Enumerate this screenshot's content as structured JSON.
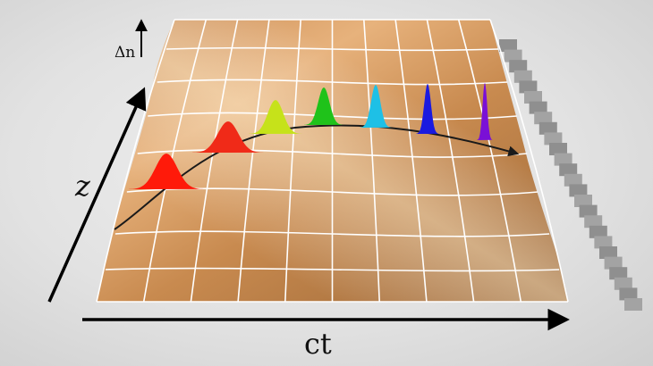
{
  "labels": {
    "delta_n": "Δn",
    "z_axis": "z",
    "ct_axis": "ct"
  },
  "colors": {
    "surface_light": "#e8b07a",
    "surface_mid": "#c9894f",
    "surface_dark": "#8a5a2f",
    "grid": "#ffffff",
    "trajectory": "#1a1a1a",
    "axis": "#000000",
    "block": "#9a9a9a"
  },
  "pulses": [
    {
      "name": "red-pulse",
      "color": "#ff1a0a"
    },
    {
      "name": "red-orange-pulse",
      "color": "#f02a18"
    },
    {
      "name": "yellow-green-pulse",
      "color": "#c6e21a"
    },
    {
      "name": "green-pulse",
      "color": "#1fc21a"
    },
    {
      "name": "cyan-pulse",
      "color": "#1ec0e6"
    },
    {
      "name": "blue-pulse",
      "color": "#1a1ae0"
    },
    {
      "name": "violet-pulse",
      "color": "#7a10d6"
    }
  ]
}
